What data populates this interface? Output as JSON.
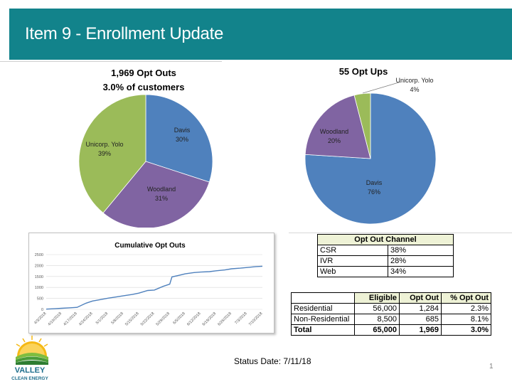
{
  "header": {
    "title": "Item 9 - Enrollment Update",
    "bg_color": "#12838b"
  },
  "chart_data": [
    {
      "type": "pie",
      "title": "1,969 Opt Outs",
      "subtitle": "3.0% of customers",
      "slices": [
        {
          "label": "Davis",
          "value": 30,
          "pct_label": "30%",
          "color": "#4f81bd"
        },
        {
          "label": "Woodland",
          "value": 31,
          "pct_label": "31%",
          "color": "#8064a2"
        },
        {
          "label": "Unicorp. Yolo",
          "value": 39,
          "pct_label": "39%",
          "color": "#9bbb59"
        }
      ]
    },
    {
      "type": "pie",
      "title": "55 Opt Ups",
      "slices": [
        {
          "label": "Davis",
          "value": 76,
          "pct_label": "76%",
          "color": "#4f81bd"
        },
        {
          "label": "Woodland",
          "value": 20,
          "pct_label": "20%",
          "color": "#8064a2"
        },
        {
          "label": "Unicorp. Yolo",
          "value": 4,
          "pct_label": "4%",
          "color": "#9bbb59"
        }
      ]
    },
    {
      "type": "line",
      "title": "Cumulative Opt Outs",
      "ylim": [
        0,
        2500
      ],
      "yticks": [
        0,
        500,
        1000,
        1500,
        2000,
        2500
      ],
      "xlim": [
        "4/3/2018",
        "7/10/2018"
      ],
      "xticks": [
        "4/3/2018",
        "4/10/2018",
        "4/17/2018",
        "4/24/2018",
        "5/1/2018",
        "5/8/2018",
        "5/15/2018",
        "5/22/2018",
        "5/29/2018",
        "6/5/2018",
        "6/12/2018",
        "6/19/2018",
        "6/26/2018",
        "7/3/2018",
        "7/10/2018"
      ],
      "grid": true,
      "color": "#4f81bd",
      "series": [
        {
          "x": [
            "4/3/2018",
            "4/7/2018",
            "4/10/2018",
            "4/14/2018",
            "4/17/2018",
            "4/21/2018",
            "4/24/2018",
            "4/28/2018",
            "5/1/2018",
            "5/5/2018",
            "5/8/2018",
            "5/12/2018",
            "5/15/2018",
            "5/19/2018",
            "5/22/2018",
            "5/26/2018",
            "5/29/2018",
            "5/30/2018",
            "6/2/2018",
            "6/5/2018",
            "6/9/2018",
            "6/12/2018",
            "6/16/2018",
            "6/19/2018",
            "6/23/2018",
            "6/26/2018",
            "6/30/2018",
            "7/3/2018",
            "7/7/2018",
            "7/11/2018"
          ],
          "values": [
            10,
            30,
            50,
            70,
            90,
            280,
            380,
            450,
            510,
            570,
            620,
            680,
            740,
            860,
            880,
            1050,
            1150,
            1480,
            1550,
            1620,
            1680,
            1700,
            1720,
            1760,
            1800,
            1850,
            1880,
            1910,
            1950,
            1969
          ]
        }
      ]
    }
  ],
  "opt_out_channel": {
    "title": "Opt Out Channel",
    "rows": [
      {
        "label": "CSR",
        "value": "38%"
      },
      {
        "label": "IVR",
        "value": "28%"
      },
      {
        "label": "Web",
        "value": "34%"
      }
    ]
  },
  "eligibility": {
    "headers": [
      "",
      "Eligible",
      "Opt Out",
      "% Opt Out"
    ],
    "rows": [
      {
        "label": "Residential",
        "eligible": "56,000",
        "opt_out": "1,284",
        "pct": "2.3%"
      },
      {
        "label": "Non-Residential",
        "eligible": "8,500",
        "opt_out": "685",
        "pct": "8.1%"
      },
      {
        "label": "Total",
        "eligible": "65,000",
        "opt_out": "1,969",
        "pct": "3.0%"
      }
    ]
  },
  "status": "Status Date: 7/11/18",
  "page_number": "1",
  "logo": {
    "line1": "VALLEY",
    "line2": "CLEAN ENERGY"
  }
}
